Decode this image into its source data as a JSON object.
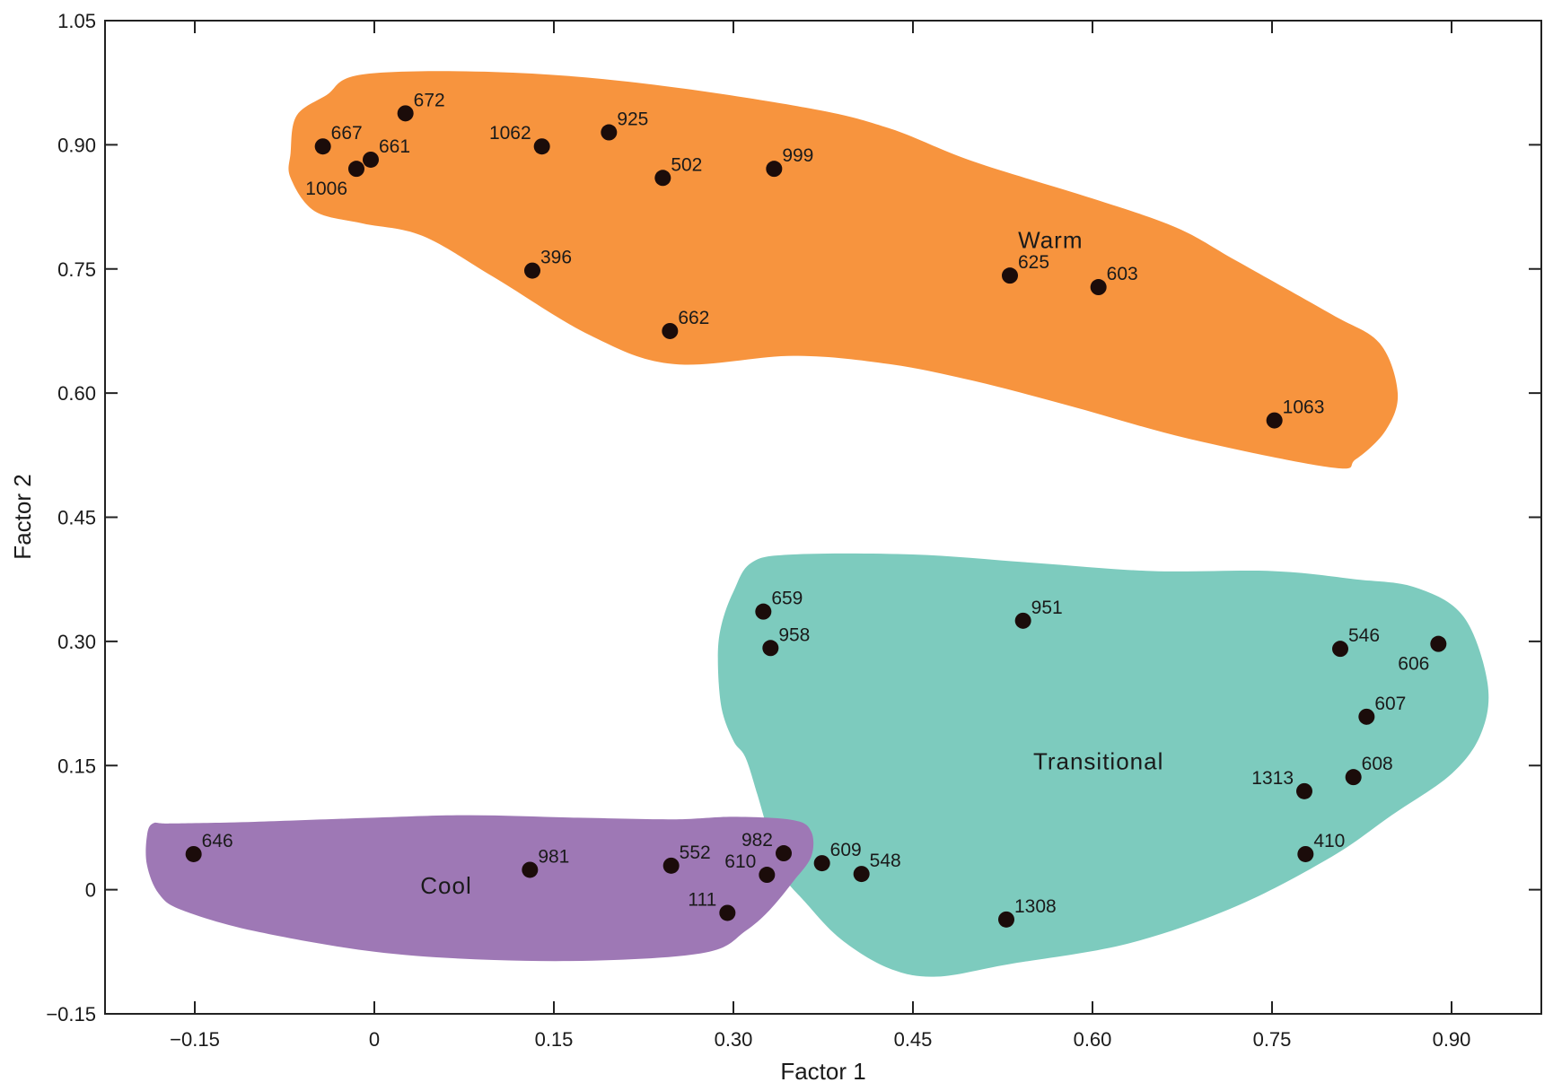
{
  "chart_data": {
    "type": "scatter",
    "title": "",
    "xlabel": "Factor 1",
    "ylabel": "Factor 2",
    "xlim": [
      -0.225,
      0.975
    ],
    "ylim": [
      -0.15,
      1.05
    ],
    "xticks": [
      {
        "value": -0.15,
        "label": "−0.15"
      },
      {
        "value": 0,
        "label": "0"
      },
      {
        "value": 0.15,
        "label": "0.15"
      },
      {
        "value": 0.3,
        "label": "0.30"
      },
      {
        "value": 0.45,
        "label": "0.45"
      },
      {
        "value": 0.6,
        "label": "0.60"
      },
      {
        "value": 0.75,
        "label": "0.75"
      },
      {
        "value": 0.9,
        "label": "0.90"
      }
    ],
    "yticks": [
      {
        "value": -0.15,
        "label": "−0.15"
      },
      {
        "value": 0,
        "label": "0"
      },
      {
        "value": 0.15,
        "label": "0.15"
      },
      {
        "value": 0.3,
        "label": "0.30"
      },
      {
        "value": 0.45,
        "label": "0.45"
      },
      {
        "value": 0.6,
        "label": "0.60"
      },
      {
        "value": 0.75,
        "label": "0.75"
      },
      {
        "value": 0.9,
        "label": "0.90"
      },
      {
        "value": 1.05,
        "label": "1.05"
      }
    ],
    "groups": [
      {
        "name": "Warm",
        "color": "#f7943e",
        "label_at": [
          0.565,
          0.785
        ],
        "outline": [
          [
            -0.07,
            0.89
          ],
          [
            -0.065,
            0.935
          ],
          [
            -0.04,
            0.96
          ],
          [
            -0.01,
            0.985
          ],
          [
            0.1,
            0.988
          ],
          [
            0.22,
            0.975
          ],
          [
            0.36,
            0.945
          ],
          [
            0.43,
            0.92
          ],
          [
            0.5,
            0.88
          ],
          [
            0.6,
            0.835
          ],
          [
            0.67,
            0.8
          ],
          [
            0.72,
            0.76
          ],
          [
            0.8,
            0.695
          ],
          [
            0.84,
            0.66
          ],
          [
            0.855,
            0.6
          ],
          [
            0.845,
            0.555
          ],
          [
            0.82,
            0.52
          ],
          [
            0.8,
            0.51
          ],
          [
            0.68,
            0.545
          ],
          [
            0.58,
            0.585
          ],
          [
            0.5,
            0.615
          ],
          [
            0.43,
            0.635
          ],
          [
            0.35,
            0.645
          ],
          [
            0.25,
            0.635
          ],
          [
            0.18,
            0.67
          ],
          [
            0.1,
            0.74
          ],
          [
            0.04,
            0.79
          ],
          [
            -0.01,
            0.805
          ],
          [
            -0.05,
            0.82
          ],
          [
            -0.07,
            0.86
          ]
        ]
      },
      {
        "name": "Transitional",
        "color": "#7dcbbe",
        "label_at": [
          0.605,
          0.155
        ],
        "outline": [
          [
            0.3,
            0.36
          ],
          [
            0.315,
            0.395
          ],
          [
            0.35,
            0.405
          ],
          [
            0.45,
            0.405
          ],
          [
            0.55,
            0.395
          ],
          [
            0.65,
            0.385
          ],
          [
            0.75,
            0.385
          ],
          [
            0.82,
            0.375
          ],
          [
            0.87,
            0.365
          ],
          [
            0.91,
            0.33
          ],
          [
            0.93,
            0.25
          ],
          [
            0.925,
            0.19
          ],
          [
            0.9,
            0.14
          ],
          [
            0.85,
            0.09
          ],
          [
            0.8,
            0.04
          ],
          [
            0.72,
            -0.02
          ],
          [
            0.63,
            -0.065
          ],
          [
            0.53,
            -0.09
          ],
          [
            0.47,
            -0.105
          ],
          [
            0.43,
            -0.095
          ],
          [
            0.39,
            -0.06
          ],
          [
            0.36,
            -0.015
          ],
          [
            0.34,
            0.02
          ],
          [
            0.33,
            0.065
          ],
          [
            0.32,
            0.115
          ],
          [
            0.31,
            0.16
          ],
          [
            0.3,
            0.18
          ],
          [
            0.29,
            0.22
          ],
          [
            0.287,
            0.28
          ],
          [
            0.29,
            0.32
          ]
        ]
      },
      {
        "name": "Cool",
        "color": "#9e78b5",
        "label_at": [
          0.06,
          0.005
        ],
        "outline": [
          [
            -0.185,
            0.08
          ],
          [
            -0.17,
            0.08
          ],
          [
            -0.1,
            0.082
          ],
          [
            0,
            0.087
          ],
          [
            0.08,
            0.09
          ],
          [
            0.17,
            0.087
          ],
          [
            0.25,
            0.085
          ],
          [
            0.3,
            0.088
          ],
          [
            0.35,
            0.084
          ],
          [
            0.365,
            0.07
          ],
          [
            0.365,
            0.04
          ],
          [
            0.35,
            0.01
          ],
          [
            0.33,
            -0.025
          ],
          [
            0.31,
            -0.05
          ],
          [
            0.28,
            -0.075
          ],
          [
            0.2,
            -0.085
          ],
          [
            0.1,
            -0.085
          ],
          [
            0,
            -0.075
          ],
          [
            -0.1,
            -0.05
          ],
          [
            -0.16,
            -0.025
          ],
          [
            -0.18,
            -0.005
          ],
          [
            -0.19,
            0.03
          ],
          [
            -0.19,
            0.065
          ]
        ]
      }
    ],
    "points": [
      {
        "label": "672",
        "x": 0.026,
        "y": 0.938,
        "label_side": "right"
      },
      {
        "label": "667",
        "x": -0.043,
        "y": 0.898,
        "label_side": "right"
      },
      {
        "label": "661",
        "x": -0.003,
        "y": 0.882,
        "label_side": "right"
      },
      {
        "label": "1006",
        "x": -0.015,
        "y": 0.871,
        "label_side": "below-left"
      },
      {
        "label": "1062",
        "x": 0.14,
        "y": 0.898,
        "label_side": "left"
      },
      {
        "label": "925",
        "x": 0.196,
        "y": 0.915,
        "label_side": "right"
      },
      {
        "label": "502",
        "x": 0.241,
        "y": 0.86,
        "label_side": "right"
      },
      {
        "label": "999",
        "x": 0.334,
        "y": 0.871,
        "label_side": "right"
      },
      {
        "label": "396",
        "x": 0.132,
        "y": 0.748,
        "label_side": "right"
      },
      {
        "label": "662",
        "x": 0.247,
        "y": 0.675,
        "label_side": "right"
      },
      {
        "label": "625",
        "x": 0.531,
        "y": 0.742,
        "label_side": "right"
      },
      {
        "label": "603",
        "x": 0.605,
        "y": 0.728,
        "label_side": "right"
      },
      {
        "label": "1063",
        "x": 0.752,
        "y": 0.567,
        "label_side": "right"
      },
      {
        "label": "659",
        "x": 0.325,
        "y": 0.336,
        "label_side": "right"
      },
      {
        "label": "958",
        "x": 0.331,
        "y": 0.292,
        "label_side": "right"
      },
      {
        "label": "951",
        "x": 0.542,
        "y": 0.325,
        "label_side": "right"
      },
      {
        "label": "546",
        "x": 0.807,
        "y": 0.291,
        "label_side": "right"
      },
      {
        "label": "606",
        "x": 0.889,
        "y": 0.297,
        "label_side": "below-left"
      },
      {
        "label": "607",
        "x": 0.829,
        "y": 0.209,
        "label_side": "right"
      },
      {
        "label": "608",
        "x": 0.818,
        "y": 0.136,
        "label_side": "right"
      },
      {
        "label": "1313",
        "x": 0.777,
        "y": 0.119,
        "label_side": "left"
      },
      {
        "label": "410",
        "x": 0.778,
        "y": 0.043,
        "label_side": "right"
      },
      {
        "label": "609",
        "x": 0.374,
        "y": 0.032,
        "label_side": "right"
      },
      {
        "label": "548",
        "x": 0.407,
        "y": 0.019,
        "label_side": "right"
      },
      {
        "label": "1308",
        "x": 0.528,
        "y": -0.036,
        "label_side": "right"
      },
      {
        "label": "646",
        "x": -0.151,
        "y": 0.043,
        "label_side": "right"
      },
      {
        "label": "981",
        "x": 0.13,
        "y": 0.024,
        "label_side": "right"
      },
      {
        "label": "552",
        "x": 0.248,
        "y": 0.029,
        "label_side": "right"
      },
      {
        "label": "982",
        "x": 0.342,
        "y": 0.044,
        "label_side": "left-up"
      },
      {
        "label": "610",
        "x": 0.328,
        "y": 0.018,
        "label_side": "left-up"
      },
      {
        "label": "111",
        "x": 0.295,
        "y": -0.028,
        "label_side": "left-up"
      }
    ]
  }
}
